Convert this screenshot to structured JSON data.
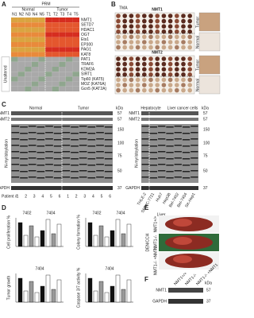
{
  "panels": {
    "a": "A",
    "b": "B",
    "c": "C",
    "d": "D",
    "e": "E",
    "f": "F"
  },
  "panel_a": {
    "title": "PRM",
    "groups": [
      "Normal",
      "Tumor"
    ],
    "columns": [
      "N1",
      "N2",
      "N3",
      "N4",
      "N5",
      "T1",
      "T2",
      "T3",
      "T4",
      "T5"
    ],
    "genes": [
      "NMT1",
      "SETD7",
      "HDAC1",
      "OGT",
      "Ets1",
      "EP300",
      "PAG1",
      "KAT8",
      "PAT1",
      "TRAF6",
      "KDM2A",
      "SIRT1",
      "Tip60 (KAT5)",
      "MOZ (KAT6A)",
      "Gcn5 (KAT2A)"
    ],
    "row_group": "Unaltered"
  },
  "panel_b": {
    "title": "TMA",
    "arrays": [
      "NMT1",
      "NMT2"
    ],
    "tissue": [
      "Tumor",
      "Normal"
    ]
  },
  "panel_c": {
    "left_groups": [
      "Normal",
      "Tumor"
    ],
    "right_groups": [
      "Hepatocyte",
      "Liver cancer cells"
    ],
    "rows": [
      "NMT1",
      "NMT2",
      "N-myristoylation",
      "GAPDH"
    ],
    "unit": "kDa",
    "markers": [
      "57",
      "57",
      "150",
      "100",
      "75",
      "50",
      "37"
    ],
    "patient_label": "Patient #",
    "patients": [
      "1",
      "2",
      "3",
      "4",
      "5",
      "6",
      "1",
      "2",
      "3",
      "4",
      "5",
      "6"
    ],
    "cell_lines": [
      "THLE-2",
      "SMMC-7721",
      "Huh7",
      "Hep3B",
      "Bel-7402",
      "Bel-7404",
      "SK-Hep1"
    ]
  },
  "panel_d": {
    "lines": [
      "7402",
      "7404",
      "7402",
      "7404",
      "7404"
    ],
    "y_labels": [
      "Cell proliferation %",
      "Colony formation %",
      "Tumor growth",
      "Caspase 3/7 activity %"
    ]
  },
  "panel_e": {
    "title": "Liver",
    "treatment": "DEN/CCl4",
    "groups": [
      "NMT1+/+",
      "NMT1-/-",
      "NMT1-/- +NMT1"
    ]
  },
  "panel_f": {
    "rows": [
      "NMT1",
      "GAPDH"
    ],
    "unit": "kDa",
    "markers": [
      "57",
      "37"
    ]
  }
}
